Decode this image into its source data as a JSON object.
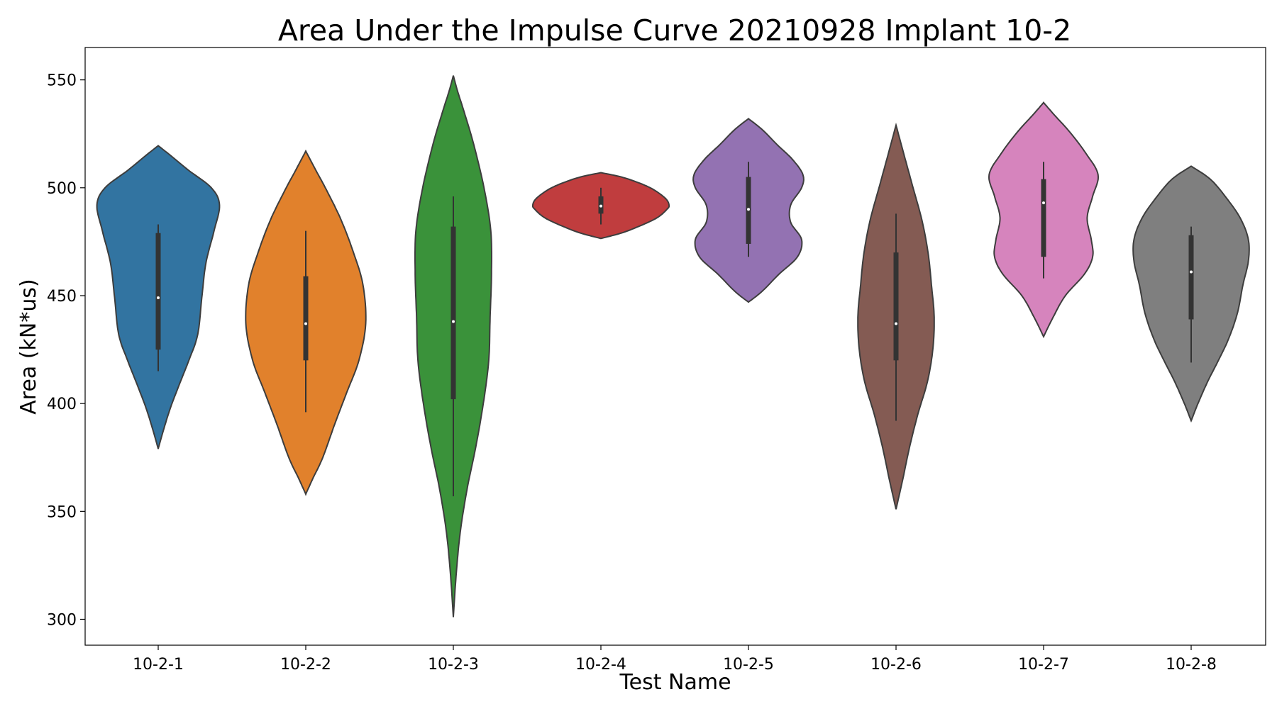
{
  "chart_data": {
    "type": "violin",
    "title": "Area Under the Impulse Curve 20210928 Implant 10-2",
    "xlabel": "Test Name",
    "ylabel": "Area (kN*us)",
    "ylim": [
      288,
      565
    ],
    "yticks": [
      300,
      350,
      400,
      450,
      500,
      550
    ],
    "grid": false,
    "categories": [
      "10-2-1",
      "10-2-2",
      "10-2-3",
      "10-2-4",
      "10-2-5",
      "10-2-6",
      "10-2-7",
      "10-2-8"
    ],
    "series": [
      {
        "category": "10-2-1",
        "color": "#3274a1",
        "min": 415,
        "q1": 425,
        "median": 449,
        "q3": 479,
        "max": 483,
        "density": [
          [
            379,
            0
          ],
          [
            388,
            0.08
          ],
          [
            398,
            0.18
          ],
          [
            408,
            0.3
          ],
          [
            420,
            0.45
          ],
          [
            432,
            0.58
          ],
          [
            449,
            0.64
          ],
          [
            465,
            0.7
          ],
          [
            480,
            0.82
          ],
          [
            492,
            0.9
          ],
          [
            500,
            0.78
          ],
          [
            508,
            0.45
          ],
          [
            515,
            0.18
          ],
          [
            519.5,
            0
          ]
        ]
      },
      {
        "category": "10-2-2",
        "color": "#e1812c",
        "min": 396,
        "q1": 420,
        "median": 437,
        "q3": 459,
        "max": 480,
        "density": [
          [
            358,
            0
          ],
          [
            365,
            0.1
          ],
          [
            375,
            0.25
          ],
          [
            390,
            0.42
          ],
          [
            405,
            0.6
          ],
          [
            420,
            0.78
          ],
          [
            437,
            0.88
          ],
          [
            455,
            0.84
          ],
          [
            470,
            0.7
          ],
          [
            485,
            0.52
          ],
          [
            498,
            0.32
          ],
          [
            508,
            0.15
          ],
          [
            517,
            0
          ]
        ]
      },
      {
        "category": "10-2-3",
        "color": "#3a923a",
        "min": 357,
        "q1": 402,
        "median": 438,
        "q3": 482,
        "max": 496,
        "density": [
          [
            301,
            0
          ],
          [
            320,
            0.04
          ],
          [
            340,
            0.1
          ],
          [
            360,
            0.2
          ],
          [
            380,
            0.33
          ],
          [
            400,
            0.44
          ],
          [
            420,
            0.52
          ],
          [
            440,
            0.54
          ],
          [
            460,
            0.56
          ],
          [
            480,
            0.55
          ],
          [
            500,
            0.45
          ],
          [
            520,
            0.3
          ],
          [
            535,
            0.16
          ],
          [
            545,
            0.06
          ],
          [
            552,
            0
          ]
        ]
      },
      {
        "category": "10-2-4",
        "color": "#c03d3e",
        "min": 483,
        "q1": 488,
        "median": 491.5,
        "q3": 496,
        "max": 500,
        "density": [
          [
            476.5,
            0
          ],
          [
            479,
            0.3
          ],
          [
            482,
            0.55
          ],
          [
            486,
            0.82
          ],
          [
            490,
            0.97
          ],
          [
            492,
            1.0
          ],
          [
            495,
            0.95
          ],
          [
            499,
            0.78
          ],
          [
            502,
            0.58
          ],
          [
            505,
            0.3
          ],
          [
            507,
            0
          ]
        ]
      },
      {
        "category": "10-2-5",
        "color": "#9372b2",
        "min": 468,
        "q1": 474,
        "median": 490,
        "q3": 505,
        "max": 512,
        "density": [
          [
            447,
            0
          ],
          [
            452,
            0.2
          ],
          [
            460,
            0.45
          ],
          [
            468,
            0.72
          ],
          [
            476,
            0.78
          ],
          [
            484,
            0.62
          ],
          [
            492,
            0.62
          ],
          [
            500,
            0.78
          ],
          [
            506,
            0.8
          ],
          [
            513,
            0.65
          ],
          [
            520,
            0.42
          ],
          [
            527,
            0.2
          ],
          [
            532,
            0
          ]
        ]
      },
      {
        "category": "10-2-6",
        "color": "#845b53",
        "min": 392,
        "q1": 420,
        "median": 437,
        "q3": 470,
        "max": 488,
        "density": [
          [
            351,
            0
          ],
          [
            365,
            0.1
          ],
          [
            380,
            0.2
          ],
          [
            395,
            0.32
          ],
          [
            410,
            0.46
          ],
          [
            425,
            0.54
          ],
          [
            440,
            0.56
          ],
          [
            455,
            0.52
          ],
          [
            470,
            0.47
          ],
          [
            485,
            0.38
          ],
          [
            500,
            0.25
          ],
          [
            515,
            0.12
          ],
          [
            529,
            0
          ]
        ]
      },
      {
        "category": "10-2-7",
        "color": "#d684bd",
        "min": 458,
        "q1": 468,
        "median": 493,
        "q3": 504,
        "max": 512,
        "density": [
          [
            431,
            0
          ],
          [
            440,
            0.14
          ],
          [
            450,
            0.32
          ],
          [
            460,
            0.6
          ],
          [
            468,
            0.72
          ],
          [
            476,
            0.7
          ],
          [
            486,
            0.64
          ],
          [
            496,
            0.72
          ],
          [
            506,
            0.8
          ],
          [
            516,
            0.62
          ],
          [
            526,
            0.38
          ],
          [
            534,
            0.15
          ],
          [
            539.5,
            0
          ]
        ]
      },
      {
        "category": "10-2-8",
        "color": "#7f7f7f",
        "min": 419,
        "q1": 439,
        "median": 461,
        "q3": 478,
        "max": 482,
        "density": [
          [
            392,
            0
          ],
          [
            400,
            0.1
          ],
          [
            410,
            0.24
          ],
          [
            420,
            0.4
          ],
          [
            430,
            0.55
          ],
          [
            442,
            0.68
          ],
          [
            455,
            0.76
          ],
          [
            466,
            0.84
          ],
          [
            476,
            0.84
          ],
          [
            486,
            0.72
          ],
          [
            496,
            0.5
          ],
          [
            504,
            0.28
          ],
          [
            510,
            0
          ]
        ]
      }
    ]
  }
}
